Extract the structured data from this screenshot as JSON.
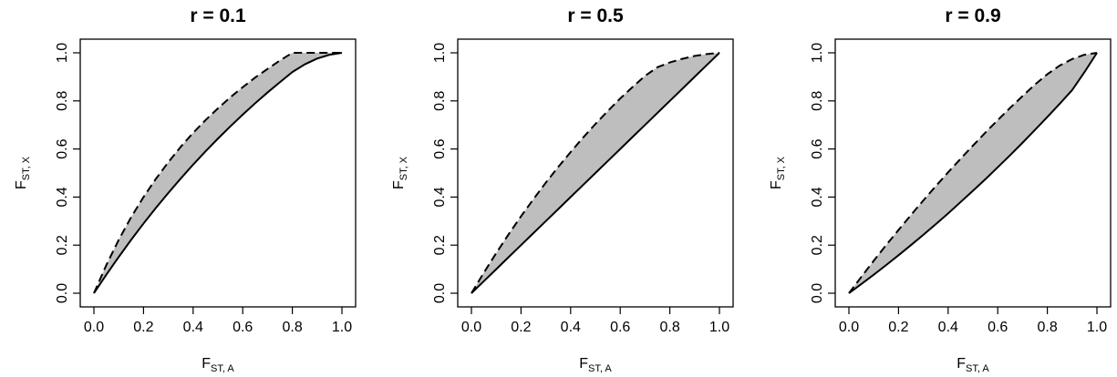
{
  "chart_data": [
    {
      "type": "area",
      "title": "r = 0.1",
      "xlabel": {
        "main": "F",
        "sub": "ST, A"
      },
      "ylabel": {
        "main": "F",
        "sub": "ST, X"
      },
      "xlim": [
        0,
        1
      ],
      "ylim": [
        0,
        1
      ],
      "xticks": [
        "0.0",
        "0.2",
        "0.4",
        "0.6",
        "0.8",
        "1.0"
      ],
      "yticks": [
        "0.0",
        "0.2",
        "0.4",
        "0.6",
        "0.8",
        "1.0"
      ],
      "x": [
        0,
        0.05,
        0.1,
        0.15,
        0.2,
        0.25,
        0.3,
        0.35,
        0.4,
        0.45,
        0.5,
        0.55,
        0.6,
        0.65,
        0.7,
        0.75,
        0.8,
        0.85,
        0.9,
        0.95,
        1
      ],
      "series": [
        {
          "style": "dashed",
          "values": [
            0,
            0.117,
            0.222,
            0.316,
            0.4,
            0.476,
            0.545,
            0.609,
            0.667,
            0.72,
            0.769,
            0.815,
            0.857,
            0.897,
            0.933,
            0.968,
            1.0,
            1.0,
            1.0,
            1.0,
            1.0
          ]
        },
        {
          "style": "solid",
          "values": [
            0,
            0.077,
            0.151,
            0.222,
            0.29,
            0.355,
            0.417,
            0.477,
            0.535,
            0.59,
            0.643,
            0.694,
            0.743,
            0.79,
            0.835,
            0.878,
            0.92,
            0.952,
            0.976,
            0.992,
            1.0
          ]
        }
      ],
      "fill_between": true,
      "fill_color": "#bebebe",
      "grid": false
    },
    {
      "type": "area",
      "title": "r = 0.5",
      "xlabel": {
        "main": "F",
        "sub": "ST, A"
      },
      "ylabel": {
        "main": "F",
        "sub": "ST, X"
      },
      "xlim": [
        0,
        1
      ],
      "ylim": [
        0,
        1
      ],
      "xticks": [
        "0.0",
        "0.2",
        "0.4",
        "0.6",
        "0.8",
        "1.0"
      ],
      "yticks": [
        "0.0",
        "0.2",
        "0.4",
        "0.6",
        "0.8",
        "1.0"
      ],
      "x": [
        0,
        0.05,
        0.1,
        0.15,
        0.2,
        0.25,
        0.3,
        0.35,
        0.4,
        0.45,
        0.5,
        0.55,
        0.6,
        0.65,
        0.7,
        0.75,
        0.8,
        0.85,
        0.9,
        0.95,
        1
      ],
      "series": [
        {
          "style": "dashed",
          "values": [
            0,
            0.085,
            0.167,
            0.245,
            0.32,
            0.391,
            0.46,
            0.525,
            0.587,
            0.647,
            0.704,
            0.758,
            0.81,
            0.858,
            0.904,
            0.94,
            0.96,
            0.975,
            0.987,
            0.995,
            1.0
          ]
        },
        {
          "style": "solid",
          "values": [
            0,
            0.05,
            0.1,
            0.15,
            0.2,
            0.25,
            0.3,
            0.35,
            0.4,
            0.45,
            0.5,
            0.55,
            0.6,
            0.65,
            0.7,
            0.75,
            0.8,
            0.85,
            0.9,
            0.95,
            1.0
          ]
        }
      ],
      "fill_between": true,
      "fill_color": "#bebebe",
      "grid": false
    },
    {
      "type": "area",
      "title": "r = 0.9",
      "xlabel": {
        "main": "F",
        "sub": "ST, A"
      },
      "ylabel": {
        "main": "F",
        "sub": "ST, X"
      },
      "xlim": [
        0,
        1
      ],
      "ylim": [
        0,
        1
      ],
      "xticks": [
        "0.0",
        "0.2",
        "0.4",
        "0.6",
        "0.8",
        "1.0"
      ],
      "yticks": [
        "0.0",
        "0.2",
        "0.4",
        "0.6",
        "0.8",
        "1.0"
      ],
      "x": [
        0,
        0.05,
        0.1,
        0.15,
        0.2,
        0.25,
        0.3,
        0.35,
        0.4,
        0.45,
        0.5,
        0.55,
        0.6,
        0.65,
        0.7,
        0.75,
        0.8,
        0.85,
        0.9,
        0.95,
        1
      ],
      "series": [
        {
          "style": "dashed",
          "values": [
            0,
            0.068,
            0.135,
            0.2,
            0.263,
            0.325,
            0.386,
            0.445,
            0.503,
            0.559,
            0.614,
            0.668,
            0.72,
            0.771,
            0.82,
            0.868,
            0.911,
            0.947,
            0.974,
            0.992,
            1.0
          ]
        },
        {
          "style": "solid",
          "values": [
            0,
            0.038,
            0.077,
            0.117,
            0.158,
            0.2,
            0.243,
            0.287,
            0.332,
            0.379,
            0.426,
            0.474,
            0.524,
            0.574,
            0.626,
            0.679,
            0.733,
            0.788,
            0.845,
            0.92,
            1.0
          ]
        }
      ],
      "fill_between": true,
      "fill_color": "#bebebe",
      "grid": false
    }
  ]
}
